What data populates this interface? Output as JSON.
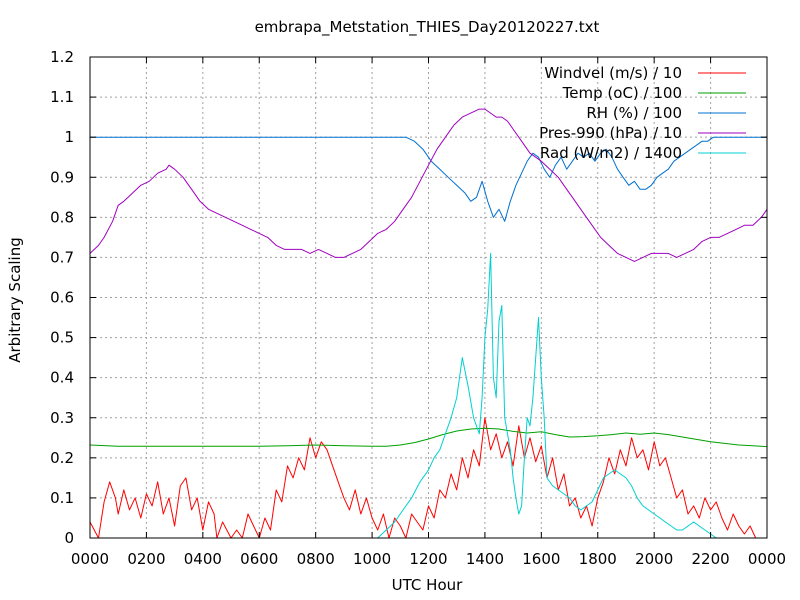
{
  "chart_data": {
    "type": "line",
    "title": "embrapa_Metstation_THIES_Day20120227.txt",
    "xlabel": "UTC Hour",
    "ylabel": "Arbitrary Scaling",
    "xlim": [
      0,
      24
    ],
    "ylim": [
      0,
      1.2
    ],
    "grid": true,
    "legend_position": "top-right",
    "x_tick_labels": [
      "0000",
      "0200",
      "0400",
      "0600",
      "0800",
      "1000",
      "1200",
      "1400",
      "1600",
      "1800",
      "2000",
      "2200",
      "0000"
    ],
    "y_tick_labels": [
      "0",
      "0.1",
      "0.2",
      "0.3",
      "0.4",
      "0.5",
      "0.6",
      "0.7",
      "0.8",
      "0.9",
      "1",
      "1.1",
      "1.2"
    ],
    "series": [
      {
        "name": "Windvel (m/s) / 10",
        "color": "#ff0000",
        "x": [
          0,
          0.3,
          0.5,
          0.7,
          0.9,
          1.0,
          1.2,
          1.4,
          1.6,
          1.8,
          2.0,
          2.2,
          2.4,
          2.6,
          2.8,
          3.0,
          3.2,
          3.4,
          3.6,
          3.8,
          4.0,
          4.2,
          4.4,
          4.5,
          4.7,
          5.0,
          5.2,
          5.4,
          5.6,
          5.8,
          6.0,
          6.2,
          6.4,
          6.6,
          6.8,
          7.0,
          7.2,
          7.4,
          7.6,
          7.8,
          8.0,
          8.2,
          8.4,
          8.6,
          8.8,
          9.0,
          9.2,
          9.4,
          9.6,
          9.8,
          10.0,
          10.2,
          10.4,
          10.6,
          10.8,
          11.0,
          11.2,
          11.4,
          11.6,
          11.8,
          12.0,
          12.2,
          12.4,
          12.6,
          12.8,
          13.0,
          13.2,
          13.4,
          13.6,
          13.8,
          14.0,
          14.2,
          14.4,
          14.6,
          14.8,
          15.0,
          15.2,
          15.4,
          15.6,
          15.8,
          16.0,
          16.2,
          16.4,
          16.6,
          16.8,
          17.0,
          17.2,
          17.4,
          17.6,
          17.8,
          18.0,
          18.2,
          18.4,
          18.6,
          18.8,
          19.0,
          19.2,
          19.4,
          19.6,
          19.8,
          20.0,
          20.2,
          20.4,
          20.6,
          20.8,
          21.0,
          21.2,
          21.4,
          21.6,
          21.8,
          22.0,
          22.2,
          22.4,
          22.6,
          22.8,
          23.0,
          23.2,
          23.4,
          23.6
        ],
        "values": [
          0.04,
          0.0,
          0.09,
          0.14,
          0.1,
          0.06,
          0.12,
          0.07,
          0.1,
          0.05,
          0.11,
          0.08,
          0.14,
          0.06,
          0.1,
          0.03,
          0.13,
          0.15,
          0.07,
          0.1,
          0.02,
          0.09,
          0.06,
          0.0,
          0.04,
          0.0,
          0.02,
          0.0,
          0.06,
          0.03,
          0.0,
          0.05,
          0.02,
          0.12,
          0.09,
          0.18,
          0.15,
          0.2,
          0.17,
          0.25,
          0.2,
          0.24,
          0.22,
          0.18,
          0.14,
          0.1,
          0.07,
          0.12,
          0.06,
          0.1,
          0.05,
          0.02,
          0.06,
          0.0,
          0.05,
          0.03,
          0.0,
          0.06,
          0.04,
          0.02,
          0.08,
          0.05,
          0.12,
          0.1,
          0.16,
          0.12,
          0.2,
          0.15,
          0.22,
          0.18,
          0.3,
          0.22,
          0.26,
          0.2,
          0.24,
          0.18,
          0.28,
          0.2,
          0.25,
          0.19,
          0.23,
          0.15,
          0.2,
          0.12,
          0.16,
          0.08,
          0.1,
          0.05,
          0.08,
          0.03,
          0.1,
          0.14,
          0.2,
          0.16,
          0.22,
          0.18,
          0.25,
          0.2,
          0.22,
          0.17,
          0.24,
          0.18,
          0.2,
          0.15,
          0.1,
          0.12,
          0.06,
          0.08,
          0.05,
          0.1,
          0.07,
          0.09,
          0.05,
          0.02,
          0.06,
          0.03,
          0.01,
          0.03,
          0.0
        ]
      },
      {
        "name": "Temp (oC) / 100",
        "color": "#00a000",
        "x": [
          0,
          1,
          2,
          3,
          4,
          5,
          6,
          7,
          8,
          9,
          10,
          10.5,
          11,
          11.5,
          12,
          12.5,
          13,
          13.5,
          14,
          14.5,
          15,
          15.5,
          16,
          16.5,
          17,
          17.5,
          18,
          18.5,
          19,
          19.5,
          20,
          20.5,
          21,
          21.5,
          22,
          22.5,
          23,
          23.5,
          24
        ],
        "values": [
          0.232,
          0.229,
          0.229,
          0.229,
          0.229,
          0.229,
          0.229,
          0.23,
          0.232,
          0.23,
          0.229,
          0.229,
          0.232,
          0.238,
          0.247,
          0.258,
          0.267,
          0.272,
          0.274,
          0.272,
          0.266,
          0.262,
          0.265,
          0.258,
          0.252,
          0.253,
          0.255,
          0.258,
          0.262,
          0.259,
          0.262,
          0.258,
          0.252,
          0.246,
          0.24,
          0.236,
          0.232,
          0.23,
          0.228
        ]
      },
      {
        "name": "RH (%) / 100",
        "color": "#0070d0",
        "x": [
          0,
          2,
          4,
          6,
          8,
          10,
          11.2,
          11.5,
          11.8,
          12.1,
          12.4,
          12.7,
          13.0,
          13.3,
          13.5,
          13.7,
          13.9,
          14.1,
          14.3,
          14.5,
          14.7,
          14.9,
          15.1,
          15.3,
          15.5,
          15.7,
          15.9,
          16.1,
          16.3,
          16.5,
          16.7,
          16.9,
          17.1,
          17.3,
          17.5,
          17.7,
          17.9,
          18.1,
          18.3,
          18.5,
          18.7,
          18.9,
          19.1,
          19.3,
          19.5,
          19.7,
          19.9,
          20.1,
          20.3,
          20.5,
          20.7,
          20.9,
          21.1,
          21.3,
          21.5,
          21.7,
          21.9,
          22.1,
          22.3,
          22.5,
          22.7,
          22.9,
          23.1,
          23.3,
          23.5,
          23.7,
          24.0
        ],
        "values": [
          1.0,
          1.0,
          1.0,
          1.0,
          1.0,
          1.0,
          1.0,
          0.99,
          0.97,
          0.94,
          0.92,
          0.9,
          0.88,
          0.86,
          0.84,
          0.85,
          0.89,
          0.84,
          0.8,
          0.82,
          0.79,
          0.84,
          0.88,
          0.91,
          0.94,
          0.96,
          0.95,
          0.92,
          0.9,
          0.93,
          0.95,
          0.92,
          0.94,
          0.96,
          0.95,
          0.96,
          0.94,
          0.96,
          0.97,
          0.95,
          0.92,
          0.9,
          0.88,
          0.89,
          0.87,
          0.87,
          0.88,
          0.9,
          0.91,
          0.92,
          0.94,
          0.95,
          0.96,
          0.97,
          0.98,
          0.99,
          0.99,
          1.0,
          1.0,
          1.0,
          1.0,
          1.0,
          1.0,
          1.0,
          1.0,
          1.0,
          1.0
        ]
      },
      {
        "name": "Pres-990 (hPa) / 10",
        "color": "#a000c0",
        "x": [
          0,
          0.3,
          0.5,
          0.8,
          1.0,
          1.2,
          1.5,
          1.8,
          2.1,
          2.4,
          2.7,
          2.8,
          3.0,
          3.3,
          3.6,
          3.9,
          4.2,
          4.5,
          4.8,
          5.1,
          5.4,
          5.7,
          6.0,
          6.3,
          6.6,
          6.9,
          7.2,
          7.5,
          7.8,
          8.1,
          8.4,
          8.7,
          9.0,
          9.3,
          9.6,
          9.9,
          10.2,
          10.5,
          10.8,
          11.1,
          11.4,
          11.7,
          12.0,
          12.3,
          12.6,
          12.9,
          13.2,
          13.5,
          13.8,
          14.0,
          14.2,
          14.4,
          14.6,
          14.8,
          15.0,
          15.2,
          15.4,
          15.6,
          15.8,
          16.0,
          16.3,
          16.6,
          16.9,
          17.2,
          17.5,
          17.8,
          18.1,
          18.4,
          18.7,
          19.0,
          19.3,
          19.6,
          19.9,
          20.2,
          20.5,
          20.8,
          21.1,
          21.4,
          21.7,
          22.0,
          22.3,
          22.6,
          22.9,
          23.2,
          23.5,
          23.8,
          24.0
        ],
        "values": [
          0.71,
          0.73,
          0.75,
          0.79,
          0.83,
          0.84,
          0.86,
          0.88,
          0.89,
          0.91,
          0.92,
          0.93,
          0.92,
          0.9,
          0.87,
          0.84,
          0.82,
          0.81,
          0.8,
          0.79,
          0.78,
          0.77,
          0.76,
          0.75,
          0.73,
          0.72,
          0.72,
          0.72,
          0.71,
          0.72,
          0.71,
          0.7,
          0.7,
          0.71,
          0.72,
          0.74,
          0.76,
          0.77,
          0.79,
          0.82,
          0.85,
          0.89,
          0.93,
          0.97,
          1.0,
          1.03,
          1.05,
          1.06,
          1.07,
          1.07,
          1.06,
          1.05,
          1.05,
          1.04,
          1.02,
          1.0,
          0.98,
          0.96,
          0.95,
          0.94,
          0.92,
          0.9,
          0.87,
          0.84,
          0.81,
          0.78,
          0.75,
          0.73,
          0.71,
          0.7,
          0.69,
          0.7,
          0.71,
          0.71,
          0.71,
          0.7,
          0.71,
          0.72,
          0.74,
          0.75,
          0.75,
          0.76,
          0.77,
          0.78,
          0.78,
          0.8,
          0.82
        ]
      },
      {
        "name": "Rad (W/m2) / 1400",
        "color": "#00d0d0",
        "x": [
          0,
          9.9,
          10.2,
          10.5,
          10.8,
          11.1,
          11.4,
          11.7,
          12.0,
          12.2,
          12.4,
          12.6,
          12.8,
          13.0,
          13.1,
          13.2,
          13.4,
          13.6,
          13.8,
          13.9,
          14.0,
          14.1,
          14.2,
          14.3,
          14.4,
          14.5,
          14.6,
          14.7,
          14.8,
          14.9,
          15.0,
          15.1,
          15.2,
          15.3,
          15.4,
          15.5,
          15.6,
          15.7,
          15.8,
          15.9,
          16.0,
          16.1,
          16.2,
          16.4,
          16.6,
          16.8,
          17.0,
          17.2,
          17.4,
          17.6,
          17.8,
          18.0,
          18.2,
          18.4,
          18.6,
          18.8,
          19.0,
          19.2,
          19.4,
          19.6,
          19.8,
          20.0,
          20.2,
          20.4,
          20.6,
          20.8,
          21.0,
          21.2,
          21.4,
          21.6,
          21.8,
          22.0,
          22.2,
          22.4,
          22.6,
          22.8,
          24.0
        ],
        "values": [
          0,
          0,
          0.0,
          0.02,
          0.04,
          0.07,
          0.1,
          0.14,
          0.17,
          0.2,
          0.22,
          0.26,
          0.3,
          0.35,
          0.4,
          0.45,
          0.38,
          0.3,
          0.26,
          0.35,
          0.5,
          0.57,
          0.71,
          0.4,
          0.35,
          0.54,
          0.58,
          0.3,
          0.26,
          0.22,
          0.15,
          0.1,
          0.06,
          0.08,
          0.2,
          0.3,
          0.28,
          0.35,
          0.45,
          0.55,
          0.4,
          0.3,
          0.15,
          0.13,
          0.12,
          0.11,
          0.1,
          0.08,
          0.07,
          0.08,
          0.09,
          0.12,
          0.15,
          0.16,
          0.17,
          0.16,
          0.15,
          0.13,
          0.1,
          0.08,
          0.07,
          0.06,
          0.05,
          0.04,
          0.03,
          0.02,
          0.02,
          0.03,
          0.04,
          0.03,
          0.02,
          0.01,
          0.0,
          0.0,
          0.0,
          0.0,
          0.0
        ]
      }
    ]
  }
}
